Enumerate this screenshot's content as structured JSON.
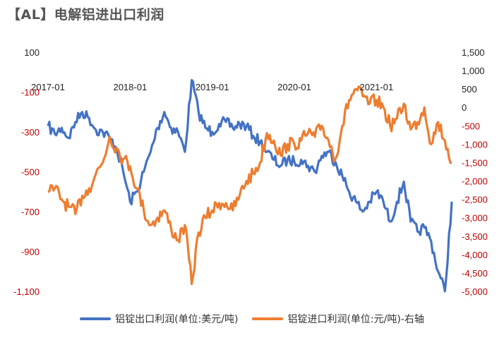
{
  "page": {
    "title": "【AL】电解铝进出口利润"
  },
  "colors": {
    "export": "#4472C4",
    "import": "#ED7D31",
    "negative_tick": "#C00000",
    "positive_tick": "#222222"
  },
  "chart_data": {
    "type": "line",
    "title": "【AL】电解铝进出口利润",
    "x_ticks": [
      "2017-01",
      "2018-01",
      "2019-01",
      "2020-01",
      "2021-01"
    ],
    "x_range": [
      "2017-01",
      "2021-12"
    ],
    "y_left": {
      "range": [
        -1100,
        100
      ],
      "ticks": [
        "100",
        "-100",
        "-300",
        "-500",
        "-700",
        "-900",
        "-1,100"
      ]
    },
    "y_right": {
      "range": [
        -5000,
        1500
      ],
      "ticks": [
        "1,500",
        "1,000",
        "500",
        "0",
        "-500",
        "-1,000",
        "-1,500",
        "-2,000",
        "-2,500",
        "-3,000",
        "-3,500",
        "-4,000",
        "-4,500",
        "-5,000"
      ]
    },
    "grid": false,
    "legend_position": "bottom",
    "series": [
      {
        "name": "铝锭出口利润(单位:美元/吨)",
        "axis": "left",
        "points": [
          [
            "2017-01",
            -270
          ],
          [
            "2017-02",
            -310
          ],
          [
            "2017-03",
            -280
          ],
          [
            "2017-04",
            -330
          ],
          [
            "2017-05",
            -250
          ],
          [
            "2017-06",
            -200
          ],
          [
            "2017-07",
            -230
          ],
          [
            "2017-08",
            -290
          ],
          [
            "2017-09",
            -300
          ],
          [
            "2017-10",
            -330
          ],
          [
            "2017-11",
            -380
          ],
          [
            "2017-12",
            -500
          ],
          [
            "2018-01",
            -650
          ],
          [
            "2018-02",
            -600
          ],
          [
            "2018-03",
            -500
          ],
          [
            "2018-04",
            -400
          ],
          [
            "2018-05",
            -280
          ],
          [
            "2018-06",
            -200
          ],
          [
            "2018-07",
            -280
          ],
          [
            "2018-08",
            -300
          ],
          [
            "2018-09",
            -400
          ],
          [
            "2018-10",
            -40
          ],
          [
            "2018-11",
            -200
          ],
          [
            "2018-12",
            -280
          ],
          [
            "2019-01",
            -300
          ],
          [
            "2019-02",
            -260
          ],
          [
            "2019-03",
            -250
          ],
          [
            "2019-04",
            -280
          ],
          [
            "2019-05",
            -260
          ],
          [
            "2019-06",
            -270
          ],
          [
            "2019-07",
            -320
          ],
          [
            "2019-08",
            -350
          ],
          [
            "2019-09",
            -400
          ],
          [
            "2019-10",
            -440
          ],
          [
            "2019-11",
            -470
          ],
          [
            "2019-12",
            -440
          ],
          [
            "2020-01",
            -450
          ],
          [
            "2020-02",
            -440
          ],
          [
            "2020-03",
            -470
          ],
          [
            "2020-04",
            -500
          ],
          [
            "2020-05",
            -420
          ],
          [
            "2020-06",
            -400
          ],
          [
            "2020-07",
            -450
          ],
          [
            "2020-08",
            -520
          ],
          [
            "2020-09",
            -600
          ],
          [
            "2020-10",
            -650
          ],
          [
            "2020-11",
            -700
          ],
          [
            "2020-12",
            -650
          ],
          [
            "2021-01",
            -600
          ],
          [
            "2021-02",
            -650
          ],
          [
            "2021-03",
            -750
          ],
          [
            "2021-04",
            -650
          ],
          [
            "2021-05",
            -550
          ],
          [
            "2021-06",
            -750
          ],
          [
            "2021-07",
            -800
          ],
          [
            "2021-08",
            -780
          ],
          [
            "2021-09",
            -850
          ],
          [
            "2021-10",
            -1000
          ],
          [
            "2021-11",
            -1100
          ],
          [
            "2021-12",
            -650
          ]
        ]
      },
      {
        "name": "铝锭进口利润(单位:元/吨)-右轴",
        "axis": "right",
        "points": [
          [
            "2017-01",
            -2300
          ],
          [
            "2017-02",
            -2200
          ],
          [
            "2017-03",
            -2500
          ],
          [
            "2017-04",
            -2700
          ],
          [
            "2017-05",
            -2900
          ],
          [
            "2017-06",
            -2400
          ],
          [
            "2017-07",
            -2200
          ],
          [
            "2017-08",
            -1800
          ],
          [
            "2017-09",
            -1500
          ],
          [
            "2017-10",
            -800
          ],
          [
            "2017-11",
            -1100
          ],
          [
            "2017-12",
            -1400
          ],
          [
            "2018-01",
            -1600
          ],
          [
            "2018-02",
            -2200
          ],
          [
            "2018-03",
            -2800
          ],
          [
            "2018-04",
            -3200
          ],
          [
            "2018-05",
            -3000
          ],
          [
            "2018-06",
            -2800
          ],
          [
            "2018-07",
            -3300
          ],
          [
            "2018-08",
            -3600
          ],
          [
            "2018-09",
            -3200
          ],
          [
            "2018-10",
            -4800
          ],
          [
            "2018-11",
            -3400
          ],
          [
            "2018-12",
            -3000
          ],
          [
            "2019-01",
            -2800
          ],
          [
            "2019-02",
            -2600
          ],
          [
            "2019-03",
            -2600
          ],
          [
            "2019-04",
            -2800
          ],
          [
            "2019-05",
            -2400
          ],
          [
            "2019-06",
            -2000
          ],
          [
            "2019-07",
            -1800
          ],
          [
            "2019-08",
            -1500
          ],
          [
            "2019-09",
            -700
          ],
          [
            "2019-10",
            -900
          ],
          [
            "2019-11",
            -1300
          ],
          [
            "2019-12",
            -1000
          ],
          [
            "2020-01",
            -1000
          ],
          [
            "2020-02",
            -900
          ],
          [
            "2020-03",
            -700
          ],
          [
            "2020-04",
            -800
          ],
          [
            "2020-05",
            -500
          ],
          [
            "2020-06",
            -900
          ],
          [
            "2020-07",
            -1400
          ],
          [
            "2020-08",
            -500
          ],
          [
            "2020-09",
            200
          ],
          [
            "2020-10",
            500
          ],
          [
            "2020-11",
            300
          ],
          [
            "2020-12",
            100
          ],
          [
            "2021-01",
            200
          ],
          [
            "2021-02",
            0
          ],
          [
            "2021-03",
            -500
          ],
          [
            "2021-04",
            -300
          ],
          [
            "2021-05",
            100
          ],
          [
            "2021-06",
            -600
          ],
          [
            "2021-07",
            -400
          ],
          [
            "2021-08",
            0
          ],
          [
            "2021-09",
            -1000
          ],
          [
            "2021-10",
            -400
          ],
          [
            "2021-11",
            -900
          ],
          [
            "2021-12",
            -1500
          ]
        ]
      }
    ]
  }
}
